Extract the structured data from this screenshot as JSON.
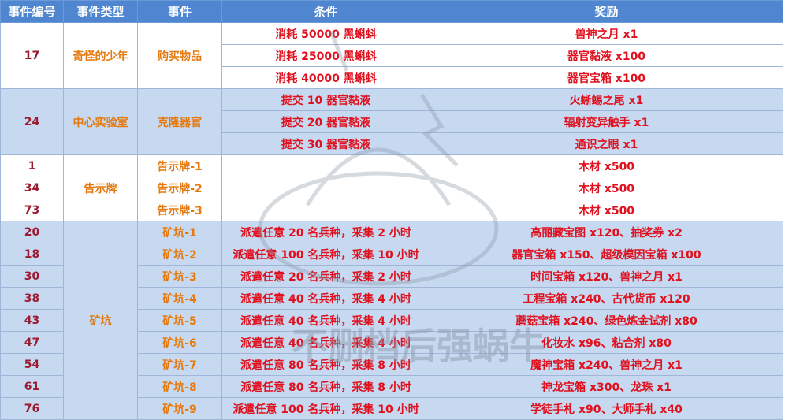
{
  "headers": [
    "事件编号",
    "事件类型",
    "事件",
    "条件",
    "奖励"
  ],
  "groups": [
    {
      "id": "17",
      "type": "奇怪的少年",
      "event": "购买物品",
      "rows": [
        {
          "condition": "消耗 50000 黑蝌蚪",
          "reward": "兽神之月 x1"
        },
        {
          "condition": "消耗 25000 黑蝌蚪",
          "reward": "器官黏液 x100"
        },
        {
          "condition": "消耗 40000 黑蝌蚪",
          "reward": "器官宝箱 x100"
        }
      ]
    },
    {
      "id": "24",
      "type": "中心实验室",
      "event": "克隆器官",
      "rows": [
        {
          "condition": "提交 10 器官黏液",
          "reward": "火蜥蜴之尾 x1"
        },
        {
          "condition": "提交 20 器官黏液",
          "reward": "辐射变异触手 x1"
        },
        {
          "condition": "提交 30 器官黏液",
          "reward": "通识之眼 x1"
        }
      ]
    },
    {
      "type": "告示牌",
      "rows": [
        {
          "id": "1",
          "event": "告示牌-1",
          "condition": "",
          "reward": "木材 x500"
        },
        {
          "id": "34",
          "event": "告示牌-2",
          "condition": "",
          "reward": "木材 x500"
        },
        {
          "id": "73",
          "event": "告示牌-3",
          "condition": "",
          "reward": "木材 x500"
        }
      ]
    },
    {
      "type": "矿坑",
      "rows": [
        {
          "id": "20",
          "event": "矿坑-1",
          "condition": "派遣任意 20 名兵种，采集 2 小时",
          "reward": "高丽藏宝图 x120、抽奖券 x2"
        },
        {
          "id": "18",
          "event": "矿坑-2",
          "condition": "派遣任意 100 名兵种，采集 10 小时",
          "reward": "器官宝箱 x150、超级模因宝箱 x100"
        },
        {
          "id": "30",
          "event": "矿坑-3",
          "condition": "派遣任意 20 名兵种，采集 2 小时",
          "reward": "时间宝箱 x120、兽神之月 x1"
        },
        {
          "id": "38",
          "event": "矿坑-4",
          "condition": "派遣任意 40 名兵种，采集 4 小时",
          "reward": "工程宝箱 x240、古代货币 x120"
        },
        {
          "id": "43",
          "event": "矿坑-5",
          "condition": "派遣任意 40 名兵种，采集 4 小时",
          "reward": "蘑菇宝箱 x240、绿色炼金试剂 x80"
        },
        {
          "id": "47",
          "event": "矿坑-6",
          "condition": "派遣任意 40 名兵种，采集 4 小时",
          "reward": "化妆水 x96、粘合剂 x80"
        },
        {
          "id": "54",
          "event": "矿坑-7",
          "condition": "派遣任意 80 名兵种，采集 8 小时",
          "reward": "魔神宝箱 x240、兽神之月 x1"
        },
        {
          "id": "61",
          "event": "矿坑-8",
          "condition": "派遣任意 80 名兵种，采集 8 小时",
          "reward": "神龙宝箱 x300、龙珠 x1"
        },
        {
          "id": "76",
          "event": "矿坑-9",
          "condition": "派遣任意 100 名兵种，采集 10 小时",
          "reward": "学徒手札 x90、大师手札 x40"
        }
      ]
    }
  ],
  "colors": {
    "header": "#4f86cf",
    "row_blue": "#c6d9f0",
    "id_text": "#9b1b30",
    "type_text": "#e5790f",
    "value_text": "#e0101e"
  }
}
